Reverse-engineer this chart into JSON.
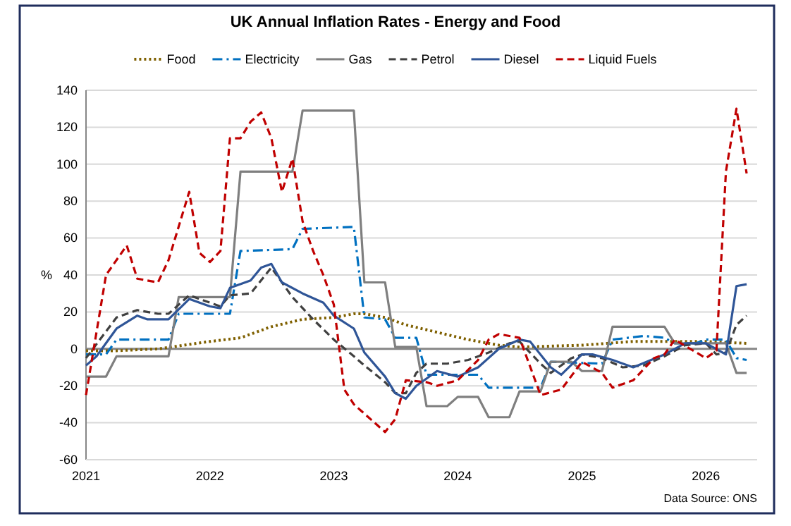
{
  "chart_data": {
    "type": "line",
    "title": "UK Annual Inflation Rates - Energy and Food",
    "ylabel": "%",
    "annotations": [
      "Data Source: ONS"
    ],
    "xlim": [
      "2021-01",
      "2026-06"
    ],
    "xticks": [
      "2021",
      "2022",
      "2023",
      "2024",
      "2025",
      "2026"
    ],
    "ylim": [
      -60,
      140
    ],
    "yticks": [
      -60,
      -40,
      -20,
      0,
      20,
      40,
      60,
      80,
      100,
      120,
      140
    ],
    "grid": "y",
    "legend": "top",
    "ref_lines": [
      {
        "axis": "y",
        "value": 0,
        "color": "#868686"
      }
    ],
    "series": [
      {
        "name": "Food",
        "color": "#7f6000",
        "line_style": "dotted",
        "x": [
          "2021-01",
          "2021-04",
          "2021-08",
          "2022-01",
          "2022-04",
          "2022-07",
          "2022-10",
          "2023-01",
          "2023-03",
          "2023-04",
          "2023-06",
          "2023-08",
          "2023-11",
          "2024-02",
          "2024-05",
          "2024-07",
          "2025-01",
          "2025-06",
          "2025-09",
          "2026-01",
          "2026-05"
        ],
        "values": [
          -1,
          -1,
          0,
          4,
          6,
          12,
          16,
          17,
          19,
          19,
          17,
          13,
          9,
          5,
          2,
          1,
          2,
          4,
          4,
          4,
          3
        ]
      },
      {
        "name": "Electricity",
        "color": "#0070c0",
        "line_style": "dashdot",
        "x": [
          "2021-01",
          "2021-03",
          "2021-04",
          "2021-09",
          "2021-10",
          "2022-03",
          "2022-04",
          "2022-09",
          "2022-10",
          "2023-03",
          "2023-04",
          "2023-06",
          "2023-07",
          "2023-09",
          "2023-10",
          "2024-03",
          "2024-04",
          "2024-09",
          "2024-10",
          "2025-03",
          "2025-04",
          "2025-07",
          "2025-09",
          "2025-10",
          "2025-12",
          "2026-01",
          "2026-03",
          "2026-04",
          "2026-05"
        ],
        "values": [
          -3,
          -3,
          5,
          5,
          19,
          19,
          53,
          54,
          65,
          66,
          17,
          16,
          6,
          6,
          -14,
          -14,
          -21,
          -21,
          -7,
          -8,
          5,
          7,
          6,
          3,
          3,
          5,
          5,
          -5,
          -6
        ]
      },
      {
        "name": "Gas",
        "color": "#7f7f7f",
        "line_style": "solid",
        "x": [
          "2021-01",
          "2021-03",
          "2021-04",
          "2021-09",
          "2021-10",
          "2022-03",
          "2022-04",
          "2022-09",
          "2022-10",
          "2023-03",
          "2023-04",
          "2023-06",
          "2023-07",
          "2023-09",
          "2023-10",
          "2023-12",
          "2024-01",
          "2024-03",
          "2024-04",
          "2024-06",
          "2024-07",
          "2024-09",
          "2024-10",
          "2024-12",
          "2025-01",
          "2025-03",
          "2025-04",
          "2025-09",
          "2025-10",
          "2026-03",
          "2026-04",
          "2026-05"
        ],
        "values": [
          -15,
          -15,
          -4,
          -4,
          28,
          28,
          96,
          96,
          129,
          129,
          36,
          36,
          1,
          1,
          -31,
          -31,
          -26,
          -26,
          -37,
          -37,
          -23,
          -23,
          -7,
          -7,
          -12,
          -12,
          12,
          12,
          3,
          3,
          -13,
          -13
        ]
      },
      {
        "name": "Petrol",
        "color": "#404040",
        "line_style": "dashed",
        "x": [
          "2021-01",
          "2021-04",
          "2021-06",
          "2021-08",
          "2021-09",
          "2021-11",
          "2022-02",
          "2022-03",
          "2022-05",
          "2022-07",
          "2022-09",
          "2022-11",
          "2023-01",
          "2023-03",
          "2023-04",
          "2023-06",
          "2023-07",
          "2023-08",
          "2023-09",
          "2023-10",
          "2023-12",
          "2024-02",
          "2024-04",
          "2024-06",
          "2024-07",
          "2024-09",
          "2024-10",
          "2024-12",
          "2025-01",
          "2025-03",
          "2025-05",
          "2025-07",
          "2025-09",
          "2025-11",
          "2026-01",
          "2026-02",
          "2026-03",
          "2026-04",
          "2026-05"
        ],
        "values": [
          -5,
          17,
          21,
          19,
          19,
          29,
          23,
          29,
          30,
          44,
          28,
          16,
          5,
          -4,
          -9,
          -18,
          -24,
          -24,
          -13,
          -8,
          -8,
          -6,
          -2,
          3,
          4,
          -8,
          -13,
          -5,
          -3,
          -5,
          -10,
          -9,
          -4,
          2,
          3,
          -3,
          -2,
          13,
          18
        ]
      },
      {
        "name": "Diesel",
        "color": "#2f5597",
        "line_style": "solid",
        "x": [
          "2021-01",
          "2021-02",
          "2021-04",
          "2021-06",
          "2021-07",
          "2021-09",
          "2021-11",
          "2022-01",
          "2022-02",
          "2022-03",
          "2022-05",
          "2022-06",
          "2022-07",
          "2022-08",
          "2022-10",
          "2022-12",
          "2023-01",
          "2023-03",
          "2023-04",
          "2023-06",
          "2023-07",
          "2023-08",
          "2023-09",
          "2023-11",
          "2024-01",
          "2024-03",
          "2024-05",
          "2024-07",
          "2024-08",
          "2024-10",
          "2024-11",
          "2025-01",
          "2025-02",
          "2025-04",
          "2025-06",
          "2025-09",
          "2025-11",
          "2026-01",
          "2026-03",
          "2026-04",
          "2026-05"
        ],
        "values": [
          -9,
          -4,
          11,
          18,
          16,
          16,
          27,
          23,
          22,
          33,
          37,
          44,
          46,
          36,
          30,
          25,
          18,
          11,
          -2,
          -15,
          -24,
          -27,
          -20,
          -12,
          -15,
          -10,
          0,
          5,
          4,
          -10,
          -14,
          -3,
          -3,
          -6,
          -10,
          -3,
          3,
          3,
          -3,
          34,
          35
        ]
      },
      {
        "name": "Liquid Fuels",
        "color": "#c00000",
        "line_style": "dashed",
        "x": [
          "2021-01",
          "2021-03",
          "2021-05",
          "2021-06",
          "2021-08",
          "2021-09",
          "2021-11",
          "2021-12",
          "2022-01",
          "2022-02",
          "2022-03",
          "2022-04",
          "2022-05",
          "2022-06",
          "2022-07",
          "2022-08",
          "2022-09",
          "2022-10",
          "2022-11",
          "2022-12",
          "2023-01",
          "2023-02",
          "2023-03",
          "2023-06",
          "2023-07",
          "2023-08",
          "2023-10",
          "2023-11",
          "2024-01",
          "2024-03",
          "2024-04",
          "2024-05",
          "2024-07",
          "2024-09",
          "2024-11",
          "2025-01",
          "2025-03",
          "2025-04",
          "2025-06",
          "2025-08",
          "2025-09",
          "2025-10",
          "2026-01",
          "2026-02",
          "2026-03",
          "2026-04",
          "2026-05"
        ],
        "values": [
          -25,
          40,
          56,
          38,
          36,
          48,
          85,
          52,
          47,
          53,
          114,
          114,
          123,
          128,
          114,
          85,
          103,
          69,
          53,
          40,
          24,
          -22,
          -30,
          -45,
          -38,
          -17,
          -18,
          -20,
          -17,
          -6,
          5,
          8,
          6,
          -25,
          -22,
          -7,
          -13,
          -21,
          -17,
          -5,
          -3,
          5,
          -5,
          -1,
          96,
          130,
          95
        ]
      }
    ]
  }
}
